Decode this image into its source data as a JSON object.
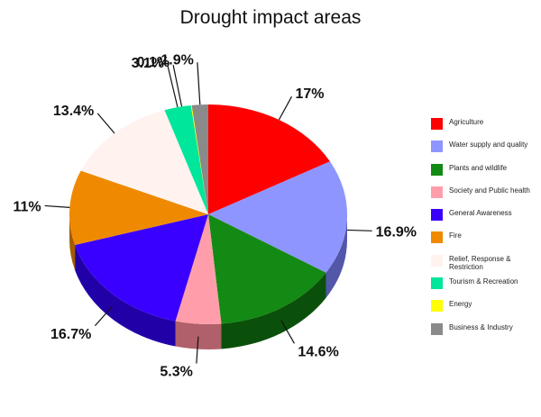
{
  "chart_data": {
    "type": "pie",
    "title": "Drought impact areas",
    "slices": [
      {
        "name": "Agriculture",
        "value": 17,
        "label": "17%",
        "color": "#ff0000",
        "shade": "#990000"
      },
      {
        "name": "Water supply and quality",
        "value": 16.9,
        "label": "16.9%",
        "color": "#8f95ff",
        "shade": "#5257aa"
      },
      {
        "name": "Plants and wildlife",
        "value": 14.6,
        "label": "14.6%",
        "color": "#138a13",
        "shade": "#0a500a"
      },
      {
        "name": "Society and Public health",
        "value": 5.3,
        "label": "5.3%",
        "color": "#ff9eaa",
        "shade": "#b0606a"
      },
      {
        "name": "General Awareness",
        "value": 16.7,
        "label": "16.7%",
        "color": "#3a00ff",
        "shade": "#2200a8"
      },
      {
        "name": "Fire",
        "value": 11,
        "label": "11%",
        "color": "#ef8a00",
        "shade": "#a35c00"
      },
      {
        "name": "Relief, Response & Restriction",
        "value": 13.4,
        "label": "13.4%",
        "color": "#fff2ef",
        "shade": "#d6c6c2"
      },
      {
        "name": "Tourism & Recreation",
        "value": 3.1,
        "label": "3.1%",
        "color": "#00e69b",
        "shade": "#00996a"
      },
      {
        "name": "Energy",
        "value": 0.1,
        "label": "0.1%",
        "color": "#ffff00",
        "shade": "#b5b500"
      },
      {
        "name": "Business & Industry",
        "value": 1.9,
        "label": "1.9%",
        "color": "#8a8a8a",
        "shade": "#555555"
      }
    ],
    "legend_position": "right"
  }
}
